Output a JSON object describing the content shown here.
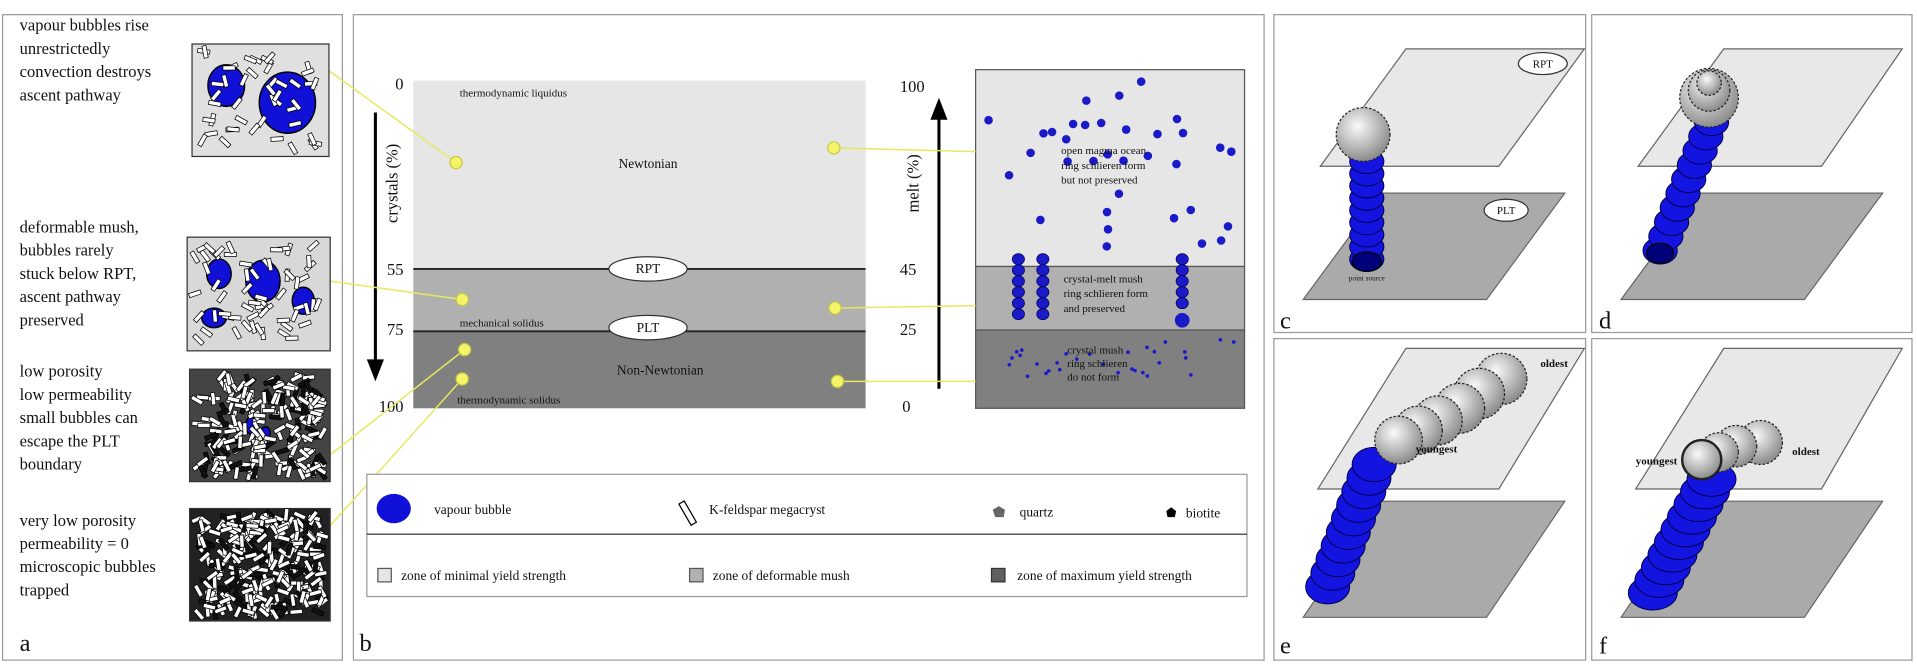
{
  "panel_a": {
    "label": "a",
    "notes": [
      {
        "lines": [
          "vapour bubbles rise",
          "unrestrictedly",
          "convection destroys",
          "ascent pathway"
        ]
      },
      {
        "lines": [
          "deformable mush,",
          "bubbles rarely",
          "stuck below RPT,",
          "ascent pathway",
          "preserved"
        ]
      },
      {
        "lines": [
          "low porosity",
          "low permeability",
          "small bubbles can",
          "escape the PLT",
          "boundary"
        ]
      },
      {
        "lines": [
          "very low porosity",
          "permeability = 0",
          "microscopic bubbles",
          "trapped"
        ]
      }
    ]
  },
  "panel_b": {
    "label": "b",
    "crystals_axis": {
      "title": "crystals (%)",
      "ticks": [
        0,
        55,
        75,
        100
      ]
    },
    "melt_axis": {
      "title": "melt (%)",
      "ticks": [
        100,
        45,
        25,
        0
      ]
    },
    "column_labels": {
      "top": "thermodynamic liquidus",
      "newtonian": "Newtonian",
      "rpt": "RPT",
      "mechanical": "mechanical solidus",
      "plt": "PLT",
      "non_newtonian": "Non-Newtonian",
      "bottom": "thermodynamic solidus"
    },
    "zone_notes": [
      [
        "open magma ocean",
        "ring schlieren form",
        "but not preserved"
      ],
      [
        "crystal-melt mush",
        "ring schlieren form",
        "and preserved"
      ],
      [
        "crystal mush",
        "ring schlieren",
        "do not form"
      ]
    ],
    "legend": {
      "vapour_bubble": "vapour bubble",
      "megacryst": "K-feldspar megacryst",
      "quartz": "quartz",
      "biotite": "biotite",
      "zone_minimal": "zone of minimal yield strength",
      "zone_mush": "zone of deformable mush",
      "zone_maximum": "zone of maximum yield strength"
    }
  },
  "panel_c": {
    "label": "c",
    "rpt": "RPT",
    "plt": "PLT",
    "point_source": "point source"
  },
  "panel_d": {
    "label": "d"
  },
  "panel_e": {
    "label": "e",
    "oldest": "oldest",
    "youngest": "youngest"
  },
  "panel_f": {
    "label": "f",
    "youngest": "youngest",
    "oldest": "oldest"
  }
}
